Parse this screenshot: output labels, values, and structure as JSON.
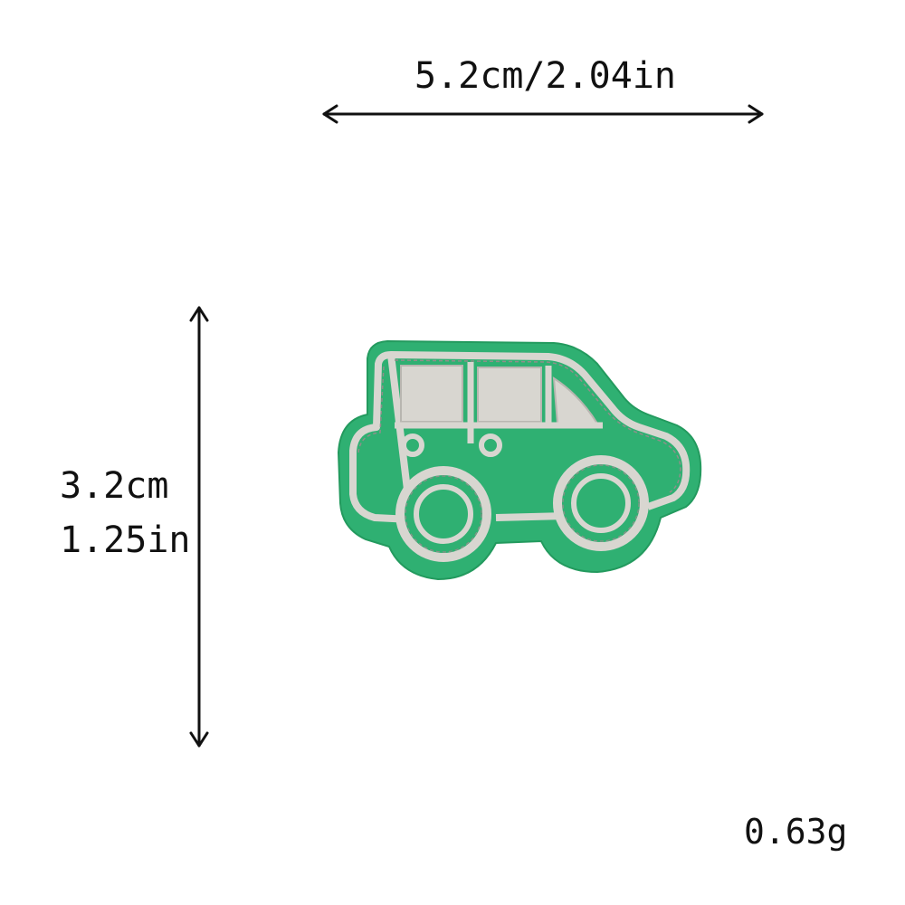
{
  "dimensions": {
    "width_label": "5.2cm/2.04in",
    "height_cm_label": "3.2cm",
    "height_in_label": "1.25in"
  },
  "weight_label": "0.63g",
  "product": {
    "name": "car-embroidered-patch",
    "body_color": "#2fb072",
    "stitch_color": "#d8d6d0"
  }
}
